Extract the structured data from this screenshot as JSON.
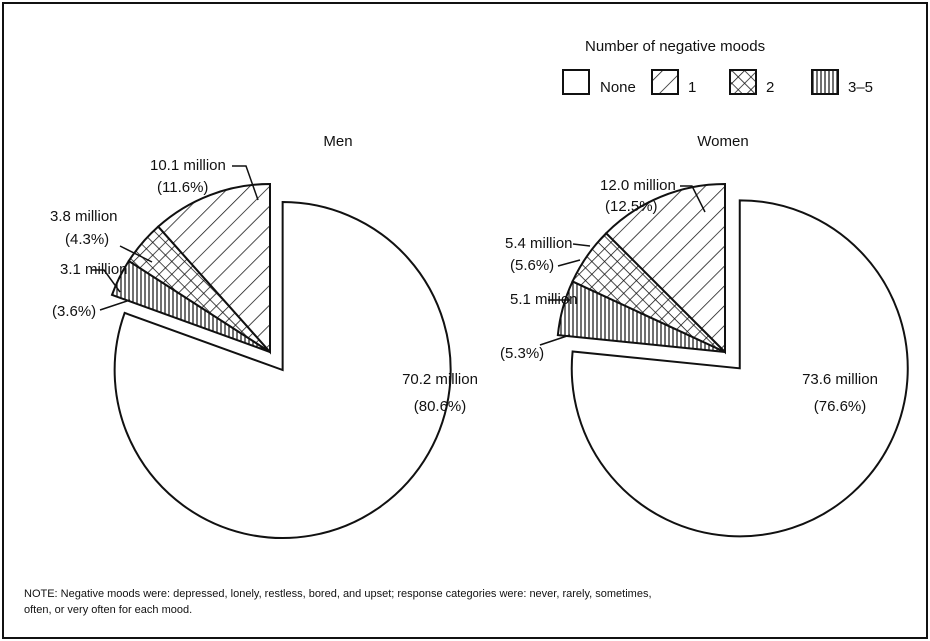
{
  "legend": {
    "title": "Number of negative moods",
    "entries": [
      "None",
      "1",
      "2",
      "3–5"
    ]
  },
  "chart_data": [
    {
      "type": "pie",
      "title": "Men",
      "values": [
        80.6,
        11.6,
        4.3,
        3.6
      ],
      "value_labels": [
        "(80.6%)",
        "(11.6%)",
        "(4.3%)",
        "(3.6%)"
      ],
      "count_labels": [
        "70.2 million",
        "10.1 million",
        "3.8 million",
        "3.1 million"
      ]
    },
    {
      "type": "pie",
      "title": "Women",
      "values": [
        76.6,
        12.5,
        5.6,
        5.3
      ],
      "value_labels": [
        "(76.6%)",
        "(12.5%)",
        "(5.6%)",
        "(5.3%)"
      ],
      "count_labels": [
        "73.6 million",
        "12.0 million",
        "5.4 million",
        "5.1 million"
      ]
    }
  ],
  "note": [
    "NOTE: Negative moods were: depressed, lonely, restless, bored, and upset; response categories were: never, rarely, sometimes,",
    "often, or very often for each mood."
  ]
}
